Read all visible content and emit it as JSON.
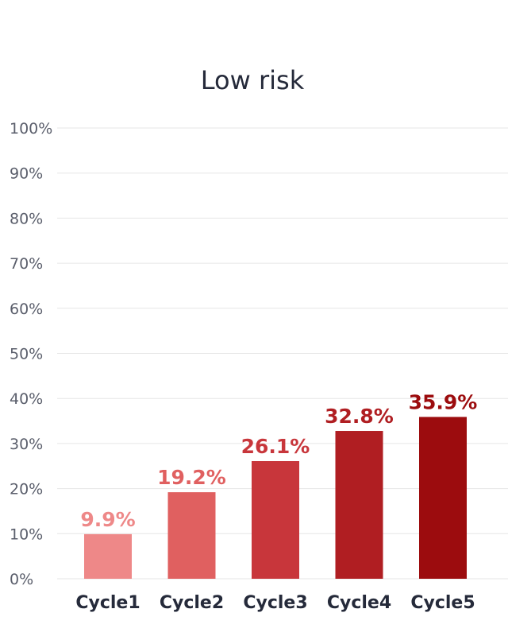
{
  "chart_data": {
    "type": "bar",
    "title": "Low risk",
    "categories": [
      "Cycle1",
      "Cycle2",
      "Cycle3",
      "Cycle4",
      "Cycle5"
    ],
    "values": [
      9.9,
      19.2,
      26.1,
      32.8,
      35.9
    ],
    "data_labels": [
      "9.9%",
      "19.2%",
      "26.1%",
      "32.8%",
      "35.9%"
    ],
    "colors": [
      "#ee8888",
      "#e06060",
      "#c8363b",
      "#b01e22",
      "#9c0c0e"
    ],
    "ylim": [
      0,
      100
    ],
    "yticks": [
      0,
      10,
      20,
      30,
      40,
      50,
      60,
      70,
      80,
      90,
      100
    ],
    "ytick_labels": [
      "0%",
      "10%",
      "20%",
      "30%",
      "40%",
      "50%",
      "60%",
      "70%",
      "80%",
      "90%",
      "100%"
    ],
    "grid": true,
    "xlabel": "",
    "ylabel": ""
  }
}
